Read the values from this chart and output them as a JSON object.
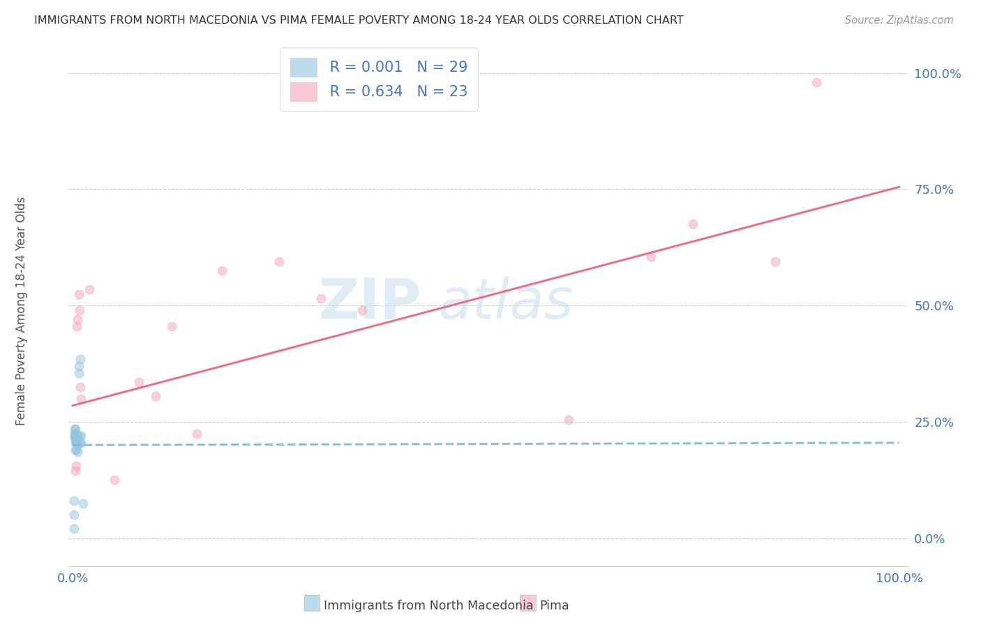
{
  "title": "IMMIGRANTS FROM NORTH MACEDONIA VS PIMA FEMALE POVERTY AMONG 18-24 YEAR OLDS CORRELATION CHART",
  "source": "Source: ZipAtlas.com",
  "ylabel": "Female Poverty Among 18-24 Year Olds",
  "ytick_labels": [
    "0.0%",
    "25.0%",
    "50.0%",
    "75.0%",
    "100.0%"
  ],
  "ytick_values": [
    0.0,
    0.25,
    0.5,
    0.75,
    1.0
  ],
  "xtick_labels": [
    "0.0%",
    "100.0%"
  ],
  "xtick_values": [
    0.0,
    1.0
  ],
  "xlim": [
    -0.005,
    1.01
  ],
  "ylim": [
    -0.06,
    1.07
  ],
  "legend_r1": "R = 0.001",
  "legend_n1": "N = 29",
  "legend_r2": "R = 0.634",
  "legend_n2": "N = 23",
  "blue_color": "#92c5de",
  "pink_color": "#f4a5b8",
  "trendline_blue_color": "#7eb8d4",
  "trendline_pink_color": "#e8607a",
  "axis_tick_color": "#4472c4",
  "watermark_text": "ZIP",
  "watermark_text2": "atlas",
  "bottom_legend": [
    "Immigrants from North Macedonia",
    "Pima"
  ],
  "blue_x": [
    0.001,
    0.001,
    0.001,
    0.002,
    0.002,
    0.002,
    0.002,
    0.003,
    0.003,
    0.003,
    0.003,
    0.003,
    0.004,
    0.004,
    0.004,
    0.004,
    0.004,
    0.005,
    0.005,
    0.006,
    0.006,
    0.007,
    0.007,
    0.008,
    0.008,
    0.009,
    0.01,
    0.01,
    0.012
  ],
  "blue_y": [
    0.02,
    0.05,
    0.08,
    0.215,
    0.22,
    0.225,
    0.235,
    0.19,
    0.205,
    0.215,
    0.225,
    0.235,
    0.19,
    0.205,
    0.215,
    0.225,
    0.22,
    0.205,
    0.22,
    0.185,
    0.2,
    0.355,
    0.37,
    0.205,
    0.22,
    0.385,
    0.205,
    0.22,
    0.075
  ],
  "pink_x": [
    0.003,
    0.004,
    0.005,
    0.006,
    0.007,
    0.008,
    0.009,
    0.01,
    0.02,
    0.05,
    0.08,
    0.1,
    0.12,
    0.15,
    0.18,
    0.25,
    0.3,
    0.35,
    0.6,
    0.7,
    0.75,
    0.85,
    0.9
  ],
  "pink_y": [
    0.145,
    0.155,
    0.455,
    0.47,
    0.525,
    0.49,
    0.325,
    0.3,
    0.535,
    0.125,
    0.335,
    0.305,
    0.455,
    0.225,
    0.575,
    0.595,
    0.515,
    0.49,
    0.255,
    0.605,
    0.675,
    0.595,
    0.98
  ],
  "blue_trend_x": [
    0.0,
    1.0
  ],
  "blue_trend_y": [
    0.2,
    0.205
  ],
  "pink_trend_x": [
    0.0,
    1.0
  ],
  "pink_trend_y": [
    0.285,
    0.755
  ],
  "marker_size": 85
}
